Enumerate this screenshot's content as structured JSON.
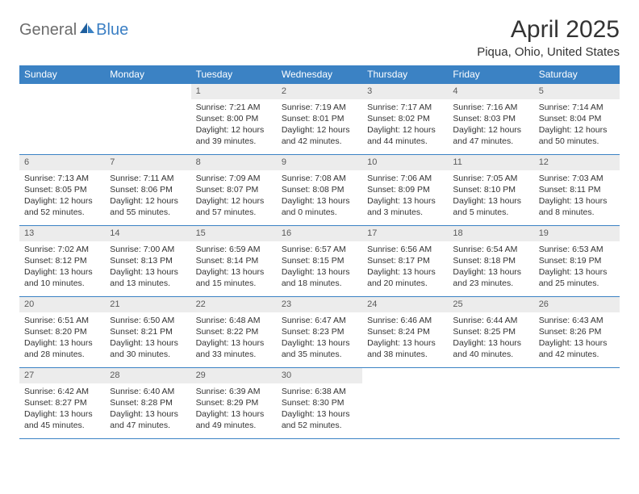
{
  "logo": {
    "general": "General",
    "blue": "Blue"
  },
  "title": "April 2025",
  "location": "Piqua, Ohio, United States",
  "colors": {
    "header_bg": "#3b82c4",
    "header_text": "#ffffff",
    "border": "#3b82c4",
    "daynum_bg": "#ececec",
    "daynum_text": "#5a5a5a",
    "body_text": "#333333",
    "logo_gray": "#6c6c6c",
    "logo_blue": "#3b7fc4"
  },
  "weekdays": [
    "Sunday",
    "Monday",
    "Tuesday",
    "Wednesday",
    "Thursday",
    "Friday",
    "Saturday"
  ],
  "weeks": [
    [
      null,
      null,
      {
        "n": "1",
        "sr": "7:21 AM",
        "ss": "8:00 PM",
        "dl": "12 hours and 39 minutes."
      },
      {
        "n": "2",
        "sr": "7:19 AM",
        "ss": "8:01 PM",
        "dl": "12 hours and 42 minutes."
      },
      {
        "n": "3",
        "sr": "7:17 AM",
        "ss": "8:02 PM",
        "dl": "12 hours and 44 minutes."
      },
      {
        "n": "4",
        "sr": "7:16 AM",
        "ss": "8:03 PM",
        "dl": "12 hours and 47 minutes."
      },
      {
        "n": "5",
        "sr": "7:14 AM",
        "ss": "8:04 PM",
        "dl": "12 hours and 50 minutes."
      }
    ],
    [
      {
        "n": "6",
        "sr": "7:13 AM",
        "ss": "8:05 PM",
        "dl": "12 hours and 52 minutes."
      },
      {
        "n": "7",
        "sr": "7:11 AM",
        "ss": "8:06 PM",
        "dl": "12 hours and 55 minutes."
      },
      {
        "n": "8",
        "sr": "7:09 AM",
        "ss": "8:07 PM",
        "dl": "12 hours and 57 minutes."
      },
      {
        "n": "9",
        "sr": "7:08 AM",
        "ss": "8:08 PM",
        "dl": "13 hours and 0 minutes."
      },
      {
        "n": "10",
        "sr": "7:06 AM",
        "ss": "8:09 PM",
        "dl": "13 hours and 3 minutes."
      },
      {
        "n": "11",
        "sr": "7:05 AM",
        "ss": "8:10 PM",
        "dl": "13 hours and 5 minutes."
      },
      {
        "n": "12",
        "sr": "7:03 AM",
        "ss": "8:11 PM",
        "dl": "13 hours and 8 minutes."
      }
    ],
    [
      {
        "n": "13",
        "sr": "7:02 AM",
        "ss": "8:12 PM",
        "dl": "13 hours and 10 minutes."
      },
      {
        "n": "14",
        "sr": "7:00 AM",
        "ss": "8:13 PM",
        "dl": "13 hours and 13 minutes."
      },
      {
        "n": "15",
        "sr": "6:59 AM",
        "ss": "8:14 PM",
        "dl": "13 hours and 15 minutes."
      },
      {
        "n": "16",
        "sr": "6:57 AM",
        "ss": "8:15 PM",
        "dl": "13 hours and 18 minutes."
      },
      {
        "n": "17",
        "sr": "6:56 AM",
        "ss": "8:17 PM",
        "dl": "13 hours and 20 minutes."
      },
      {
        "n": "18",
        "sr": "6:54 AM",
        "ss": "8:18 PM",
        "dl": "13 hours and 23 minutes."
      },
      {
        "n": "19",
        "sr": "6:53 AM",
        "ss": "8:19 PM",
        "dl": "13 hours and 25 minutes."
      }
    ],
    [
      {
        "n": "20",
        "sr": "6:51 AM",
        "ss": "8:20 PM",
        "dl": "13 hours and 28 minutes."
      },
      {
        "n": "21",
        "sr": "6:50 AM",
        "ss": "8:21 PM",
        "dl": "13 hours and 30 minutes."
      },
      {
        "n": "22",
        "sr": "6:48 AM",
        "ss": "8:22 PM",
        "dl": "13 hours and 33 minutes."
      },
      {
        "n": "23",
        "sr": "6:47 AM",
        "ss": "8:23 PM",
        "dl": "13 hours and 35 minutes."
      },
      {
        "n": "24",
        "sr": "6:46 AM",
        "ss": "8:24 PM",
        "dl": "13 hours and 38 minutes."
      },
      {
        "n": "25",
        "sr": "6:44 AM",
        "ss": "8:25 PM",
        "dl": "13 hours and 40 minutes."
      },
      {
        "n": "26",
        "sr": "6:43 AM",
        "ss": "8:26 PM",
        "dl": "13 hours and 42 minutes."
      }
    ],
    [
      {
        "n": "27",
        "sr": "6:42 AM",
        "ss": "8:27 PM",
        "dl": "13 hours and 45 minutes."
      },
      {
        "n": "28",
        "sr": "6:40 AM",
        "ss": "8:28 PM",
        "dl": "13 hours and 47 minutes."
      },
      {
        "n": "29",
        "sr": "6:39 AM",
        "ss": "8:29 PM",
        "dl": "13 hours and 49 minutes."
      },
      {
        "n": "30",
        "sr": "6:38 AM",
        "ss": "8:30 PM",
        "dl": "13 hours and 52 minutes."
      },
      null,
      null,
      null
    ]
  ],
  "labels": {
    "sunrise": "Sunrise:",
    "sunset": "Sunset:",
    "daylight": "Daylight:"
  }
}
